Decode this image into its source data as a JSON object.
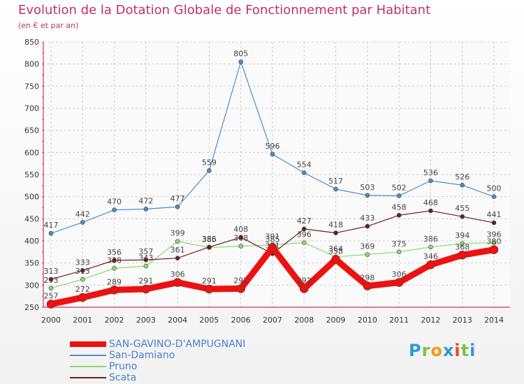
{
  "title": "Evolution de la Dotation Globale de Fonctionnement par Habitant",
  "subtitle": "(en € et par an)",
  "logo": "Proxiti",
  "colors": {
    "title": "#c0306a",
    "axis": "#cc3366",
    "grid": "#d0d0d0",
    "legend_text": "#4a7fd0"
  },
  "chart_data": {
    "type": "line",
    "title": "Evolution de la Dotation Globale de Fonctionnement par Habitant",
    "subtitle": "(en € et par an)",
    "x": [
      "2000",
      "2001",
      "2002",
      "2003",
      "2004",
      "2005",
      "2006",
      "2007",
      "2008",
      "2009",
      "2010",
      "2011",
      "2012",
      "2013",
      "2014"
    ],
    "ylim": [
      250,
      850
    ],
    "yticks": [
      "250",
      "300",
      "350",
      "400",
      "450",
      "500",
      "550",
      "600",
      "650",
      "700",
      "750",
      "800",
      "850"
    ],
    "grid": true,
    "legend_position": "bottom-left",
    "series": [
      {
        "name": "San-Damiano",
        "color": "#4a8ec8",
        "values": [
          417,
          442,
          470,
          472,
          477,
          559,
          805,
          596,
          554,
          517,
          503,
          502,
          536,
          526,
          500
        ]
      },
      {
        "name": "Pruno",
        "color": "#90d870",
        "values": [
          293,
          313,
          338,
          343,
          399,
          385,
          388,
          391,
          396,
          364,
          369,
          375,
          386,
          394,
          396
        ]
      },
      {
        "name": "Scata",
        "color": "#6b2020",
        "values": [
          313,
          333,
          356,
          357,
          361,
          386,
          408,
          371,
          427,
          418,
          433,
          458,
          468,
          455,
          441
        ]
      },
      {
        "name": "SAN-GAVINO-D'AMPUGNANI",
        "color": "#ee1111",
        "values": [
          257,
          272,
          289,
          291,
          306,
          291,
          292,
          385,
          292,
          358,
          298,
          306,
          346,
          368,
          380
        ]
      }
    ]
  }
}
